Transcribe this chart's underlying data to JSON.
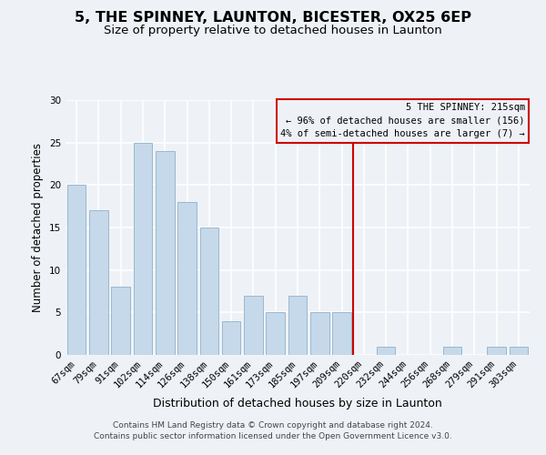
{
  "title": "5, THE SPINNEY, LAUNTON, BICESTER, OX25 6EP",
  "subtitle": "Size of property relative to detached houses in Launton",
  "xlabel": "Distribution of detached houses by size in Launton",
  "ylabel": "Number of detached properties",
  "categories": [
    "67sqm",
    "79sqm",
    "91sqm",
    "102sqm",
    "114sqm",
    "126sqm",
    "138sqm",
    "150sqm",
    "161sqm",
    "173sqm",
    "185sqm",
    "197sqm",
    "209sqm",
    "220sqm",
    "232sqm",
    "244sqm",
    "256sqm",
    "268sqm",
    "279sqm",
    "291sqm",
    "303sqm"
  ],
  "values": [
    20,
    17,
    8,
    25,
    24,
    18,
    15,
    4,
    7,
    5,
    7,
    5,
    5,
    0,
    1,
    0,
    0,
    1,
    0,
    1,
    1
  ],
  "bar_color": "#c5d9ea",
  "bar_edge_color": "#9ab8cf",
  "vline_x_index": 13.0,
  "vline_color": "#cc0000",
  "annotation_box_text": "5 THE SPINNEY: 215sqm\n← 96% of detached houses are smaller (156)\n4% of semi-detached houses are larger (7) →",
  "annotation_edge_color": "#cc0000",
  "ylim": [
    0,
    30
  ],
  "yticks": [
    0,
    5,
    10,
    15,
    20,
    25,
    30
  ],
  "footer_line1": "Contains HM Land Registry data © Crown copyright and database right 2024.",
  "footer_line2": "Contains public sector information licensed under the Open Government Licence v3.0.",
  "bg_color": "#eef2f7",
  "title_fontsize": 11.5,
  "subtitle_fontsize": 9.5,
  "xlabel_fontsize": 9,
  "ylabel_fontsize": 8.5,
  "tick_fontsize": 7.5,
  "footer_fontsize": 6.5,
  "annotation_fontsize": 7.5
}
